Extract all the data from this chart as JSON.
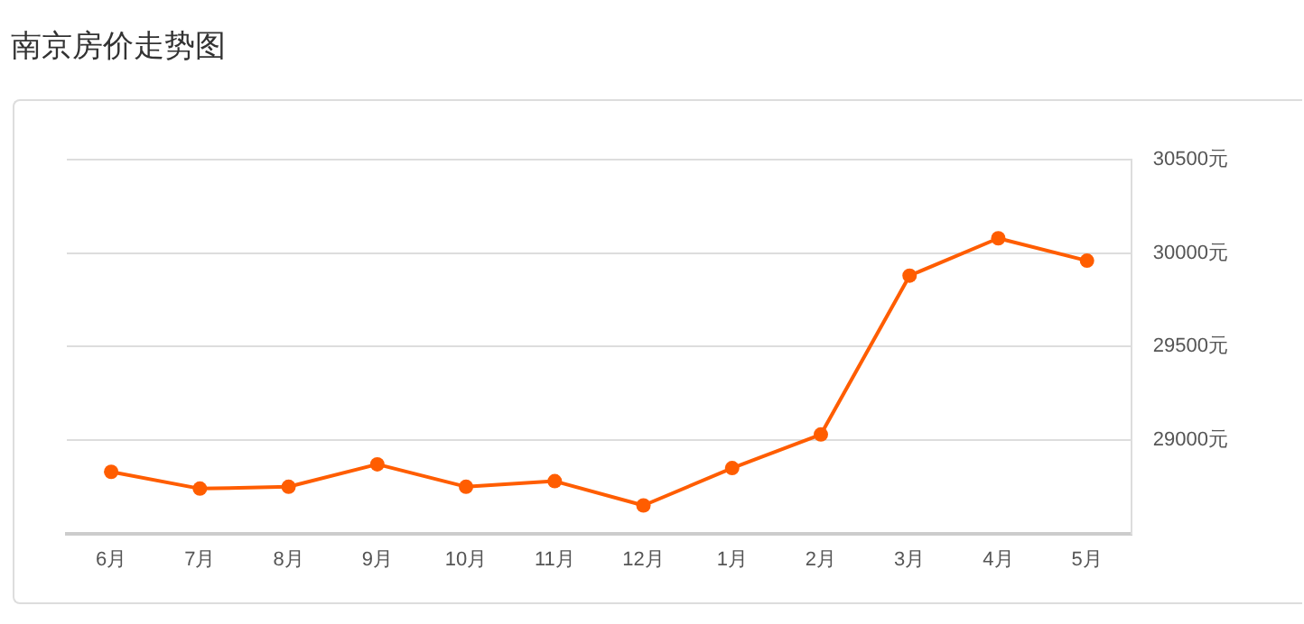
{
  "chart_data": {
    "type": "line",
    "title": "南京房价走势图",
    "categories": [
      "6月",
      "7月",
      "8月",
      "9月",
      "10月",
      "11月",
      "12月",
      "1月",
      "2月",
      "3月",
      "4月",
      "5月"
    ],
    "series": [
      {
        "color": "#ff5d00",
        "values": [
          28830,
          28740,
          28750,
          28870,
          28750,
          28780,
          28650,
          28850,
          29030,
          29880,
          30080,
          29960
        ]
      }
    ],
    "ylim": [
      28500,
      30500
    ],
    "yticks": [
      {
        "value": 28500,
        "label": null
      },
      {
        "value": 29000,
        "label": "29000元"
      },
      {
        "value": 29500,
        "label": "29500元"
      },
      {
        "value": 30000,
        "label": "30000元"
      },
      {
        "value": 30500,
        "label": "30500元"
      }
    ],
    "grid": "y",
    "legend": false,
    "marker": "circle",
    "line_style": "solid"
  }
}
